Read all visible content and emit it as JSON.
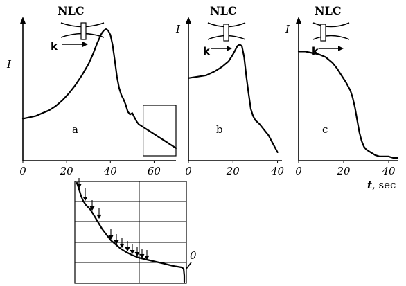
{
  "xunit": {
    "t": "t",
    "rest": ", sec"
  },
  "inset_marker_label": "0",
  "chart_data": [
    {
      "type": "line",
      "panel_label": "a",
      "title": "NLC",
      "beam_label": "k",
      "ylabel": "I",
      "xlim": [
        0,
        70
      ],
      "xticks": [
        "0",
        "20",
        "40",
        "60"
      ],
      "grid": false,
      "inset_region": [
        55,
        70
      ],
      "series": [
        {
          "x": [
            0,
            3,
            6,
            9,
            12,
            15,
            18,
            21,
            24,
            27,
            30,
            32,
            34,
            36,
            37,
            38,
            39,
            40,
            41,
            42,
            43,
            44,
            45,
            46,
            47,
            48,
            49,
            50,
            51,
            52,
            53,
            54,
            55,
            56,
            57,
            58,
            59,
            60,
            61,
            62,
            63,
            64,
            65,
            66,
            67,
            68,
            69,
            70
          ],
          "values": [
            0.3,
            0.31,
            0.32,
            0.34,
            0.36,
            0.39,
            0.43,
            0.48,
            0.54,
            0.61,
            0.69,
            0.76,
            0.84,
            0.91,
            0.93,
            0.94,
            0.93,
            0.9,
            0.83,
            0.72,
            0.6,
            0.52,
            0.47,
            0.44,
            0.4,
            0.35,
            0.33,
            0.34,
            0.31,
            0.28,
            0.26,
            0.25,
            0.24,
            0.23,
            0.22,
            0.21,
            0.2,
            0.19,
            0.18,
            0.17,
            0.16,
            0.15,
            0.14,
            0.13,
            0.12,
            0.11,
            0.1,
            0.09
          ]
        }
      ]
    },
    {
      "type": "line",
      "panel_label": "b",
      "title": "NLC",
      "beam_label": "k",
      "ylabel": "I",
      "xlim": [
        0,
        42
      ],
      "xticks": [
        "0",
        "20",
        "40"
      ],
      "grid": false,
      "series": [
        {
          "x": [
            0,
            4,
            8,
            12,
            15,
            18,
            20,
            21,
            22,
            23,
            24,
            25,
            26,
            27,
            28,
            29,
            30,
            32,
            34,
            36,
            38,
            40
          ],
          "values": [
            0.59,
            0.6,
            0.61,
            0.64,
            0.67,
            0.71,
            0.76,
            0.79,
            0.82,
            0.83,
            0.82,
            0.74,
            0.6,
            0.48,
            0.37,
            0.32,
            0.29,
            0.26,
            0.22,
            0.18,
            0.12,
            0.06
          ]
        }
      ]
    },
    {
      "type": "line",
      "panel_label": "c",
      "title": "NLC",
      "beam_label": "k",
      "ylabel": "I",
      "xlim": [
        0,
        44
      ],
      "xticks": [
        "0",
        "20",
        "40"
      ],
      "grid": false,
      "series": [
        {
          "x": [
            0,
            3,
            6,
            9,
            12,
            15,
            17,
            19,
            21,
            23,
            24,
            25,
            26,
            27,
            28,
            29,
            30,
            31,
            32,
            33,
            34,
            36,
            38,
            40,
            42,
            44
          ],
          "values": [
            0.78,
            0.78,
            0.77,
            0.76,
            0.74,
            0.7,
            0.66,
            0.61,
            0.56,
            0.5,
            0.45,
            0.38,
            0.29,
            0.2,
            0.14,
            0.1,
            0.08,
            0.07,
            0.06,
            0.05,
            0.04,
            0.03,
            0.03,
            0.03,
            0.02,
            0.02
          ]
        }
      ]
    }
  ]
}
